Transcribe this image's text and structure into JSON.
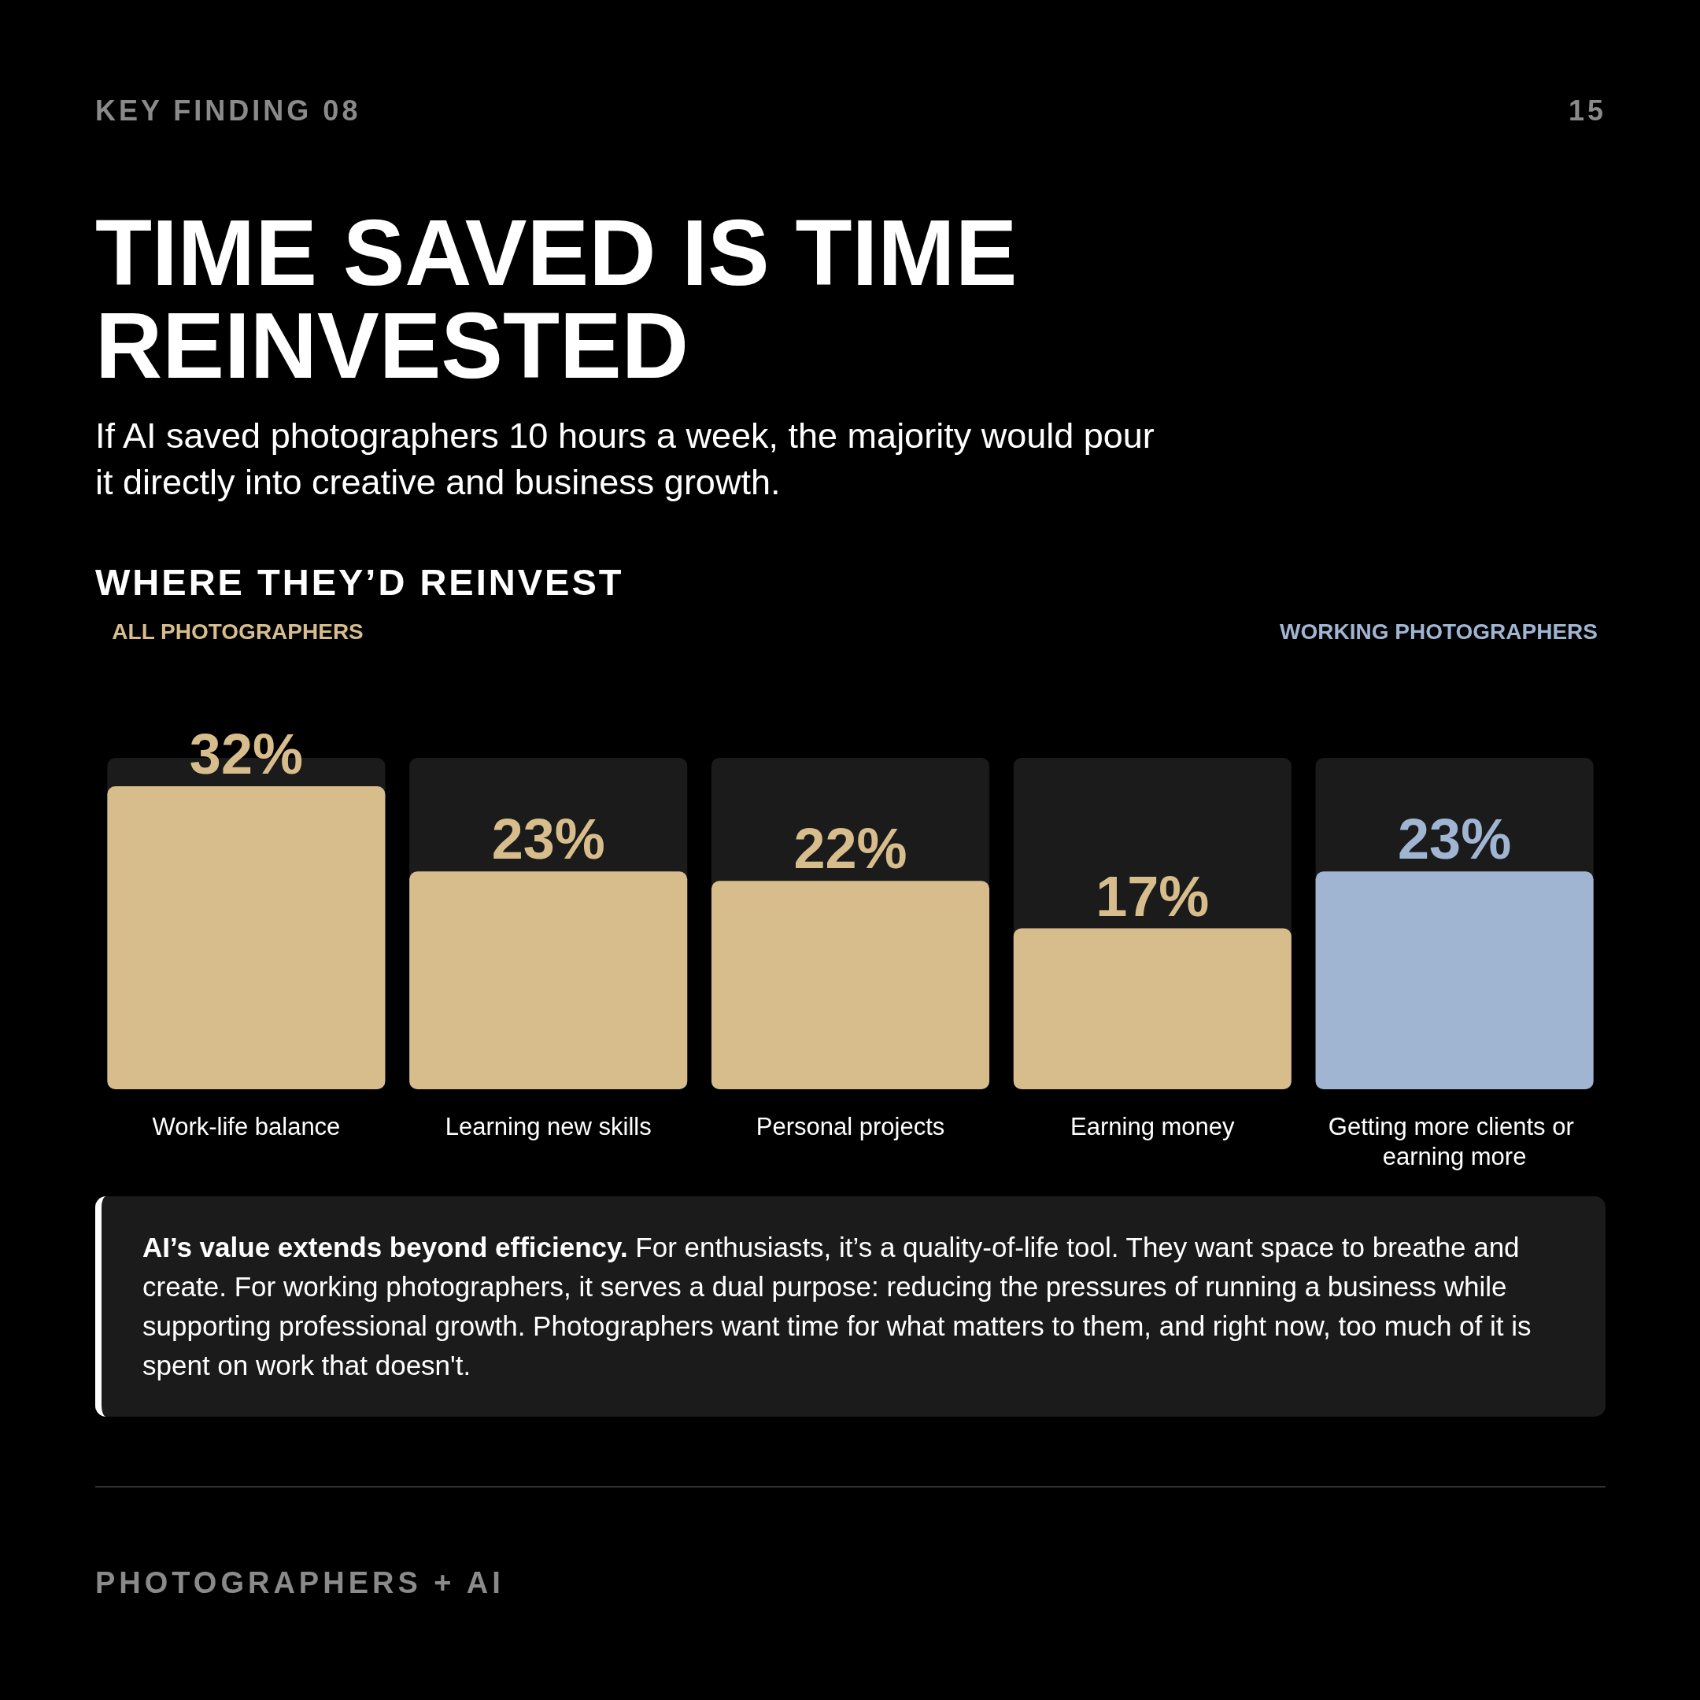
{
  "chart_data": {
    "type": "bar",
    "title": "TIME SAVED IS TIME REINVESTED",
    "subtitle": "If AI saved photographers 10 hours a week, the majority would pour it directly into creative and business growth.",
    "annotations": [
      "KEY FINDING 08",
      "15",
      "WHERE THEY’D REINVEST",
      "AI’s value extends beyond efficiency.",
      "For enthusiasts, it’s a quality-of-life tool. They want space to breathe and create. For working photographers, it serves a dual purpose: reducing the pressures of running a business while supporting professional growth. Photographers want time for what matters to them, and right now, too much of it is spent on work that doesn't.",
      "PHOTOGRAPHERS + AI"
    ],
    "categories": [
      "Work-life balance",
      "Learning new skills",
      "Personal projects",
      "Earning money",
      "Getting more clients or earning more"
    ],
    "series": [
      {
        "name": "ALL PHOTOGRAPHERS",
        "color": "#d8bd8c",
        "values": [
          32,
          23,
          22,
          17,
          null
        ],
        "value_labels": [
          "32%",
          "23%",
          "22%",
          "17%",
          null
        ]
      },
      {
        "name": "WORKING PHOTOGRAPHERS",
        "color": "#9fb5d2",
        "values": [
          null,
          null,
          null,
          null,
          23
        ],
        "value_labels": [
          null,
          null,
          null,
          null,
          "23%"
        ]
      }
    ]
  }
}
